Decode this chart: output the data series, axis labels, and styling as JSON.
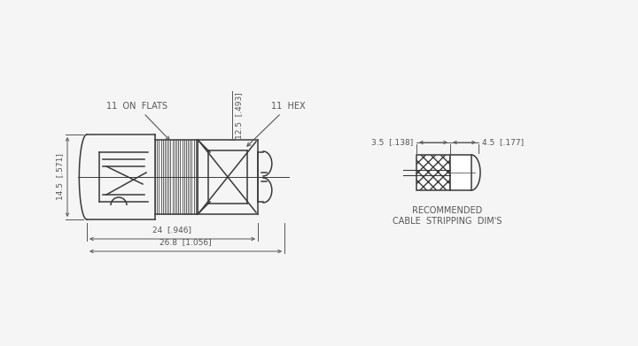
{
  "bg_color": "#f5f5f5",
  "line_color": "#3a3a3a",
  "dim_color": "#555555",
  "labels": {
    "on_flats": "11  ON  FLATS",
    "hex": "11  HEX",
    "dim_12_5": "12.5  [.493]",
    "dim_14_5": "14.5  [.571]",
    "dim_24": "24  [.946]",
    "dim_26_8": "26.8  [1.056]",
    "dim_3_5": "3.5  [.138]",
    "dim_4_5": "4.5  [.177]",
    "rec_line1": "RECOMMENDED",
    "rec_line2": "CABLE  STRIPPING  DIM'S"
  }
}
